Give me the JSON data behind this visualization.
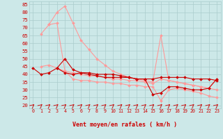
{
  "bg_color": "#cce8e8",
  "grid_color": "#aacccc",
  "line_color_dark": "#cc0000",
  "line_color_light": "#ff9999",
  "xlabel": "Vent moyen/en rafales ( km/h )",
  "xlabel_color": "#cc0000",
  "ylabel_ticks": [
    20,
    25,
    30,
    35,
    40,
    45,
    50,
    55,
    60,
    65,
    70,
    75,
    80,
    85
  ],
  "xticks": [
    0,
    1,
    2,
    3,
    4,
    5,
    6,
    7,
    8,
    9,
    10,
    11,
    12,
    13,
    14,
    15,
    16,
    17,
    18,
    19,
    20,
    21,
    22,
    23
  ],
  "xlim": [
    -0.5,
    23.5
  ],
  "ylim": [
    18,
    87
  ],
  "lines_dark": [
    {
      "x": [
        0,
        1,
        2,
        3,
        4,
        5,
        6,
        7,
        8,
        9,
        10,
        11,
        12,
        13,
        14,
        15,
        16,
        17,
        18,
        19,
        20,
        21,
        22,
        23
      ],
      "y": [
        44,
        40,
        41,
        44,
        41,
        40,
        41,
        40,
        39,
        38,
        38,
        38,
        38,
        37,
        37,
        37,
        38,
        38,
        38,
        38,
        37,
        37,
        37,
        36
      ]
    },
    {
      "x": [
        3,
        4,
        5,
        6,
        7,
        8,
        9,
        10,
        11,
        12,
        13,
        14,
        15,
        16,
        17,
        18,
        19,
        20,
        21,
        22,
        23
      ],
      "y": [
        44,
        50,
        43,
        41,
        41,
        40,
        40,
        40,
        39,
        38,
        37,
        37,
        27,
        28,
        32,
        32,
        31,
        30,
        30,
        31,
        37
      ]
    }
  ],
  "lines_light": [
    {
      "x": [
        1,
        2,
        3,
        4,
        5,
        6,
        7,
        8,
        9,
        10,
        11,
        12,
        13,
        14,
        15,
        16,
        17,
        18,
        19,
        20,
        21,
        22,
        23
      ],
      "y": [
        66,
        72,
        80,
        84,
        73,
        62,
        56,
        50,
        46,
        42,
        40,
        38,
        37,
        36,
        35,
        65,
        36,
        35,
        34,
        33,
        32,
        31,
        30
      ]
    },
    {
      "x": [
        1,
        2,
        3,
        4,
        5,
        6,
        7,
        8,
        9,
        10,
        11,
        12,
        13,
        14,
        15,
        16,
        17,
        18,
        19,
        20,
        21,
        22,
        23
      ],
      "y": [
        45,
        46,
        44,
        42,
        37,
        36,
        36,
        35,
        35,
        34,
        34,
        33,
        33,
        32,
        32,
        23,
        30,
        31,
        30,
        29,
        28,
        26,
        25
      ]
    },
    {
      "x": [
        2,
        3,
        4,
        5,
        6,
        7,
        8,
        9,
        10,
        11,
        12,
        13,
        14,
        15,
        16,
        17,
        18,
        19,
        20,
        21,
        22,
        23
      ],
      "y": [
        72,
        73,
        42,
        41,
        40,
        39,
        39,
        38,
        37,
        37,
        36,
        36,
        35,
        34,
        37,
        36,
        35,
        34,
        33,
        32,
        31,
        37
      ]
    }
  ],
  "marker": "D",
  "markersize": 2.0,
  "linewidth_dark": 0.8,
  "linewidth_light": 0.8
}
